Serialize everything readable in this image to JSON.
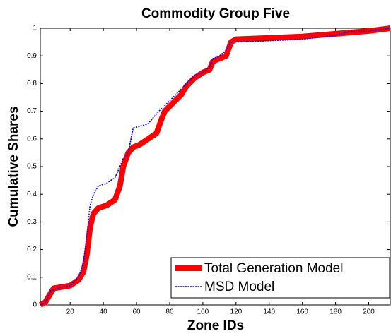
{
  "chart_data": {
    "type": "line",
    "title": "Commodity Group Five",
    "x_label": "Zone IDs",
    "y_label": "Cumulative Shares",
    "x": [
      2,
      5,
      8,
      10,
      15,
      20,
      25,
      28,
      30,
      32,
      34,
      37,
      42,
      47,
      50,
      52,
      55,
      58,
      62,
      67,
      72,
      75,
      77,
      82,
      87,
      90,
      95,
      100,
      104,
      106,
      110,
      114,
      117,
      120,
      140,
      160,
      180,
      190,
      200,
      213
    ],
    "series": [
      {
        "name": "Total Generation Model",
        "color": "#ff0000",
        "values": [
          0,
          0.01,
          0.04,
          0.06,
          0.065,
          0.07,
          0.09,
          0.12,
          0.18,
          0.28,
          0.33,
          0.35,
          0.36,
          0.38,
          0.43,
          0.5,
          0.55,
          0.57,
          0.58,
          0.6,
          0.62,
          0.67,
          0.7,
          0.73,
          0.76,
          0.79,
          0.82,
          0.84,
          0.85,
          0.88,
          0.89,
          0.9,
          0.95,
          0.96,
          0.965,
          0.97,
          0.98,
          0.985,
          0.99,
          1
        ]
      },
      {
        "name": "MSD Model",
        "color": "#0000ff",
        "values": [
          0,
          0.01,
          0.05,
          0.055,
          0.065,
          0.07,
          0.1,
          0.15,
          0.25,
          0.36,
          0.4,
          0.43,
          0.44,
          0.46,
          0.5,
          0.53,
          0.55,
          0.64,
          0.645,
          0.655,
          0.69,
          0.71,
          0.72,
          0.75,
          0.78,
          0.8,
          0.83,
          0.84,
          0.86,
          0.89,
          0.9,
          0.92,
          0.95,
          0.95,
          0.955,
          0.96,
          0.975,
          0.99,
          0.99,
          1
        ]
      }
    ],
    "xlim": [
      2,
      213
    ],
    "ylim": [
      0,
      1
    ],
    "xticks": [
      20,
      40,
      60,
      80,
      100,
      120,
      140,
      160,
      180,
      200
    ],
    "yticks": [
      0,
      0.1,
      0.2,
      0.3,
      0.4,
      0.5,
      0.6,
      0.7,
      0.8,
      0.9,
      1
    ],
    "legend": "lower right"
  }
}
